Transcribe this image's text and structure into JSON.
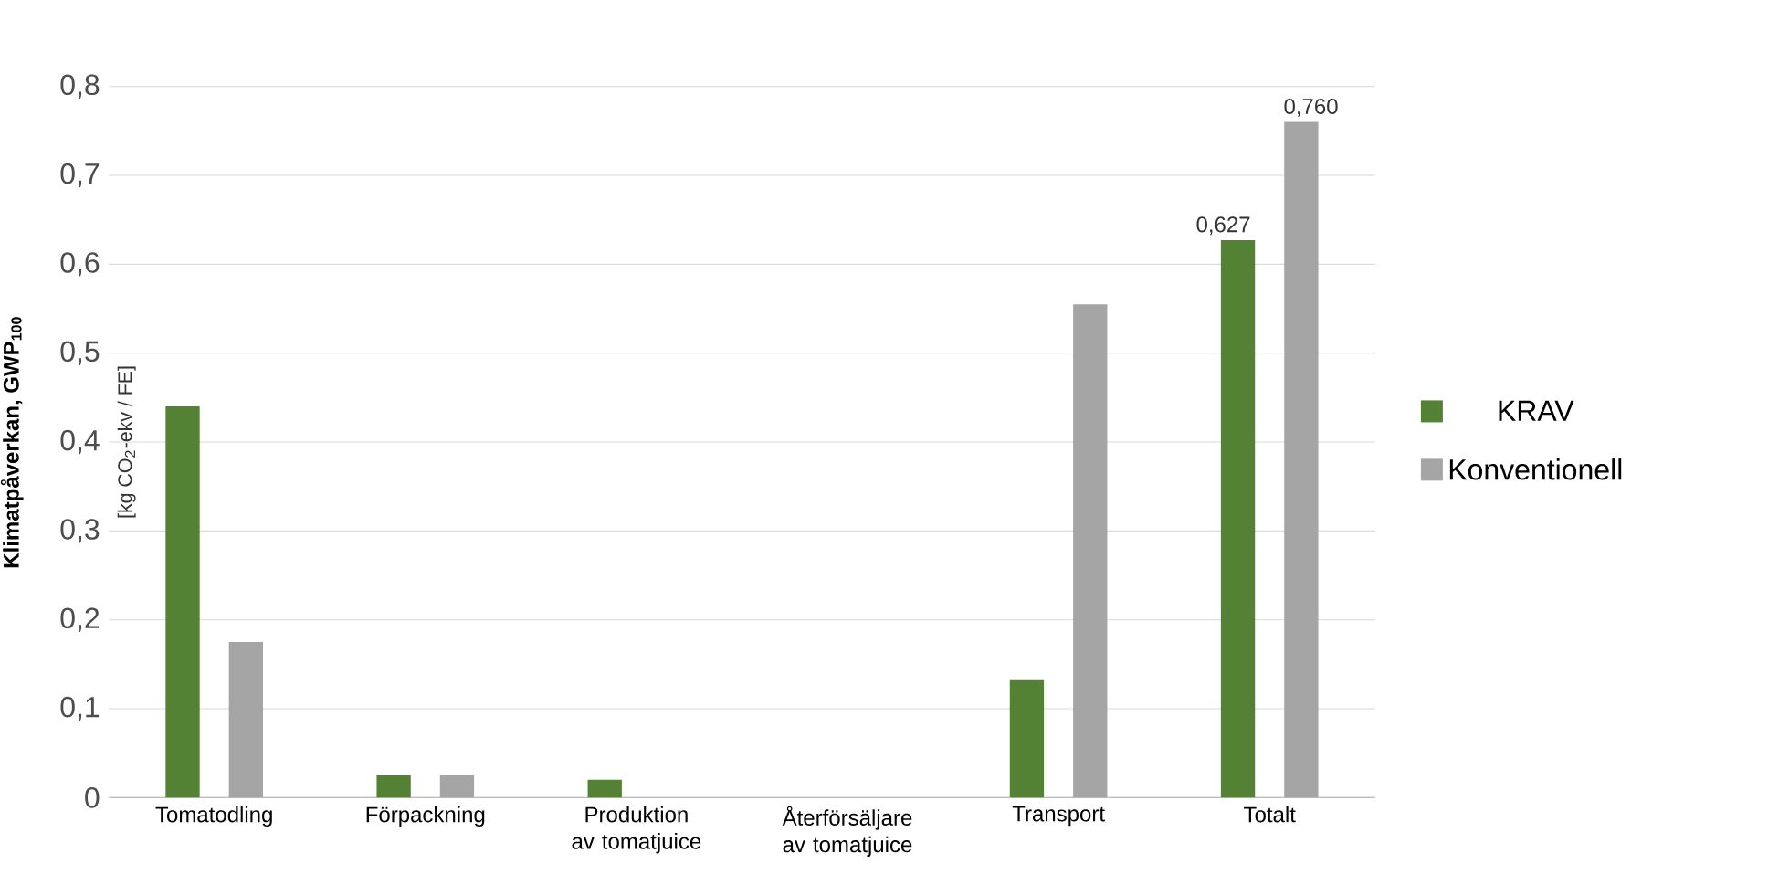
{
  "chart_data": {
    "type": "bar",
    "ylabel": "Klimatpåverkan, GWP$_{100}$",
    "annotations": [
      "[kg CO$_{2}$-ekv / FE]"
    ],
    "categories": [
      "Tomatodling",
      "Förpackning",
      "Produktion av tomatjuice",
      "Återförsäljare av tomatjuice",
      "Transport",
      "Totalt"
    ],
    "series": [
      {
        "name": "KRAV",
        "color": "#548235",
        "values": [
          0.44,
          0.025,
          0.02,
          0,
          0.132,
          0.627
        ],
        "value_labels": [
          null,
          null,
          null,
          null,
          null,
          "0,627"
        ]
      },
      {
        "name": "Konventionell",
        "color": "#a5a5a5",
        "values": [
          0.175,
          0.025,
          0,
          0,
          0.555,
          0.76
        ],
        "value_labels": [
          null,
          null,
          null,
          null,
          null,
          "0,760"
        ]
      }
    ],
    "ylim": [
      0,
      0.8
    ],
    "yticks": [
      {
        "value": 0,
        "label": "0"
      },
      {
        "value": 0.1,
        "label": "0,1"
      },
      {
        "value": 0.2,
        "label": "0,2"
      },
      {
        "value": 0.3,
        "label": "0,3"
      },
      {
        "value": 0.4,
        "label": "0,4"
      },
      {
        "value": 0.5,
        "label": "0,5"
      },
      {
        "value": 0.6,
        "label": "0,6"
      },
      {
        "value": 0.7,
        "label": "0,7"
      },
      {
        "value": 0.8,
        "label": "0,8"
      }
    ],
    "grid": "y",
    "legend": "right"
  }
}
